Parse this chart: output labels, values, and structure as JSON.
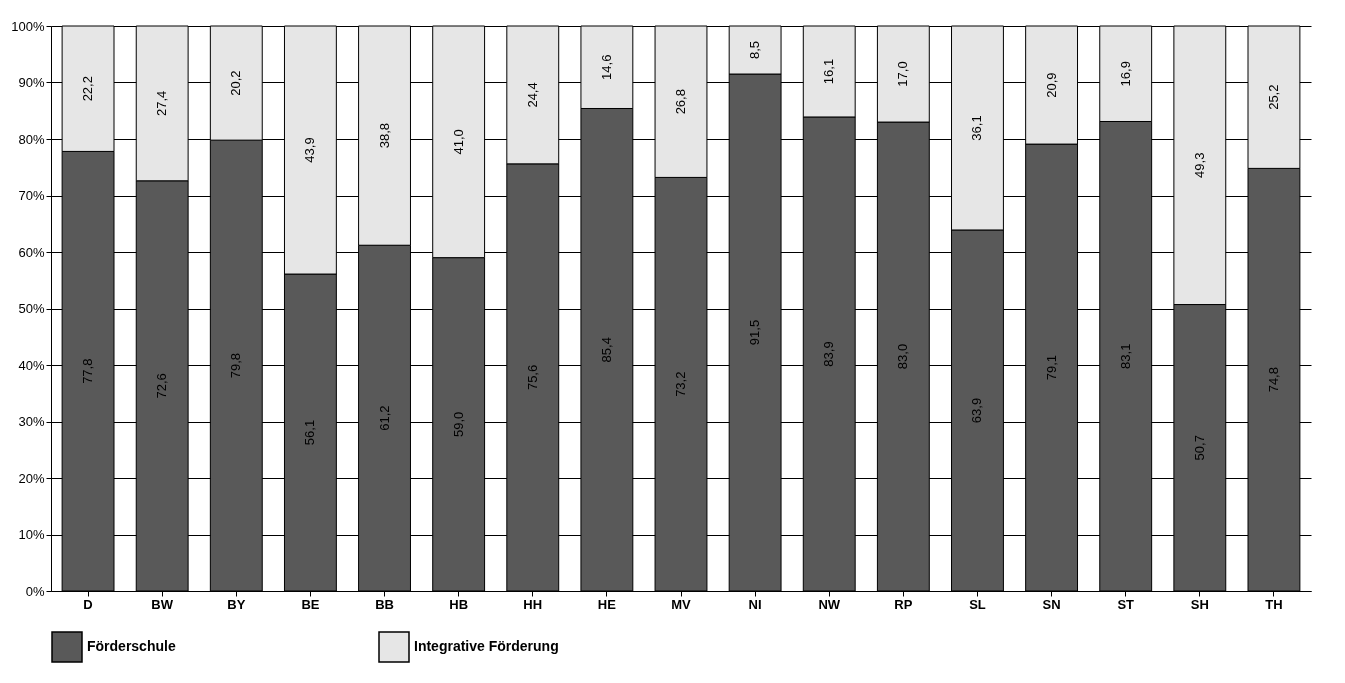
{
  "chart_data": {
    "type": "bar",
    "stacked": true,
    "categories": [
      "D",
      "BW",
      "BY",
      "BE",
      "BB",
      "HB",
      "HH",
      "HE",
      "MV",
      "NI",
      "NW",
      "RP",
      "SL",
      "SN",
      "ST",
      "SH",
      "TH"
    ],
    "series": [
      {
        "name": "Förderschule",
        "color": "#595959",
        "values": [
          77.8,
          72.6,
          79.8,
          56.1,
          61.2,
          59.0,
          75.6,
          85.4,
          73.2,
          91.5,
          83.9,
          83.0,
          63.9,
          79.1,
          83.1,
          50.7,
          74.8
        ],
        "value_labels": [
          "77,8",
          "72,6",
          "79,8",
          "56,1",
          "61,2",
          "59,0",
          "75,6",
          "85,4",
          "73,2",
          "91,5",
          "83,9",
          "83,0",
          "63,9",
          "79,1",
          "83,1",
          "50,7",
          "74,8"
        ]
      },
      {
        "name": "Integrative Förderung",
        "color": "#e6e6e6",
        "values": [
          22.2,
          27.4,
          20.2,
          43.9,
          38.8,
          41.0,
          24.4,
          14.6,
          26.8,
          8.5,
          16.1,
          17.0,
          36.1,
          20.9,
          16.9,
          49.3,
          25.2
        ],
        "value_labels": [
          "22,2",
          "27,4",
          "20,2",
          "43,9",
          "38,8",
          "41,0",
          "24,4",
          "14,6",
          "26,8",
          "8,5",
          "16,1",
          "17,0",
          "36,1",
          "20,9",
          "16,9",
          "49,3",
          "25,2"
        ]
      }
    ],
    "ylim": [
      0,
      100
    ],
    "yticks": [
      {
        "value": 0,
        "label": "0%"
      },
      {
        "value": 10,
        "label": "10%"
      },
      {
        "value": 20,
        "label": "20%"
      },
      {
        "value": 30,
        "label": "30%"
      },
      {
        "value": 40,
        "label": "40%"
      },
      {
        "value": 50,
        "label": "50%"
      },
      {
        "value": 60,
        "label": "60%"
      },
      {
        "value": 70,
        "label": "70%"
      },
      {
        "value": 80,
        "label": "80%"
      },
      {
        "value": 90,
        "label": "90%"
      },
      {
        "value": 100,
        "label": "100%"
      }
    ],
    "grid": "y",
    "legend": "bottom"
  }
}
